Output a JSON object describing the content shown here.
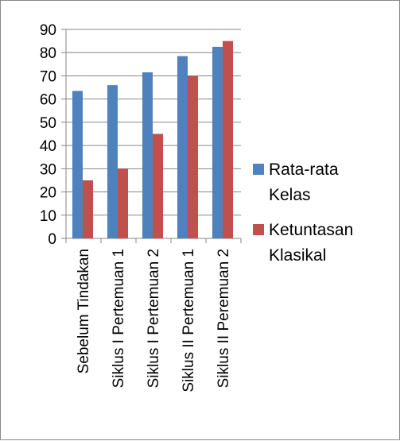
{
  "chart_data": {
    "type": "bar",
    "categories": [
      "Sebelum Tindakan",
      "Siklus I Pertemuan 1",
      "Siklus I Pertemuan 2",
      "Siklus II Pertemuan 1",
      "Siklus II Peremuan 2"
    ],
    "series": [
      {
        "name": "Rata-rata Kelas",
        "values": [
          63.5,
          66,
          71.5,
          78.5,
          82.5
        ],
        "color": "#4f81bd"
      },
      {
        "name": "Ketuntasan Klasikal",
        "values": [
          25,
          30,
          45,
          70,
          85
        ],
        "color": "#c0504d"
      }
    ],
    "ylim": [
      0,
      90
    ],
    "yticks": [
      0,
      10,
      20,
      30,
      40,
      50,
      60,
      70,
      80,
      90
    ],
    "grid": true,
    "legend_position": "right",
    "title": "",
    "xlabel": "",
    "ylabel": ""
  }
}
